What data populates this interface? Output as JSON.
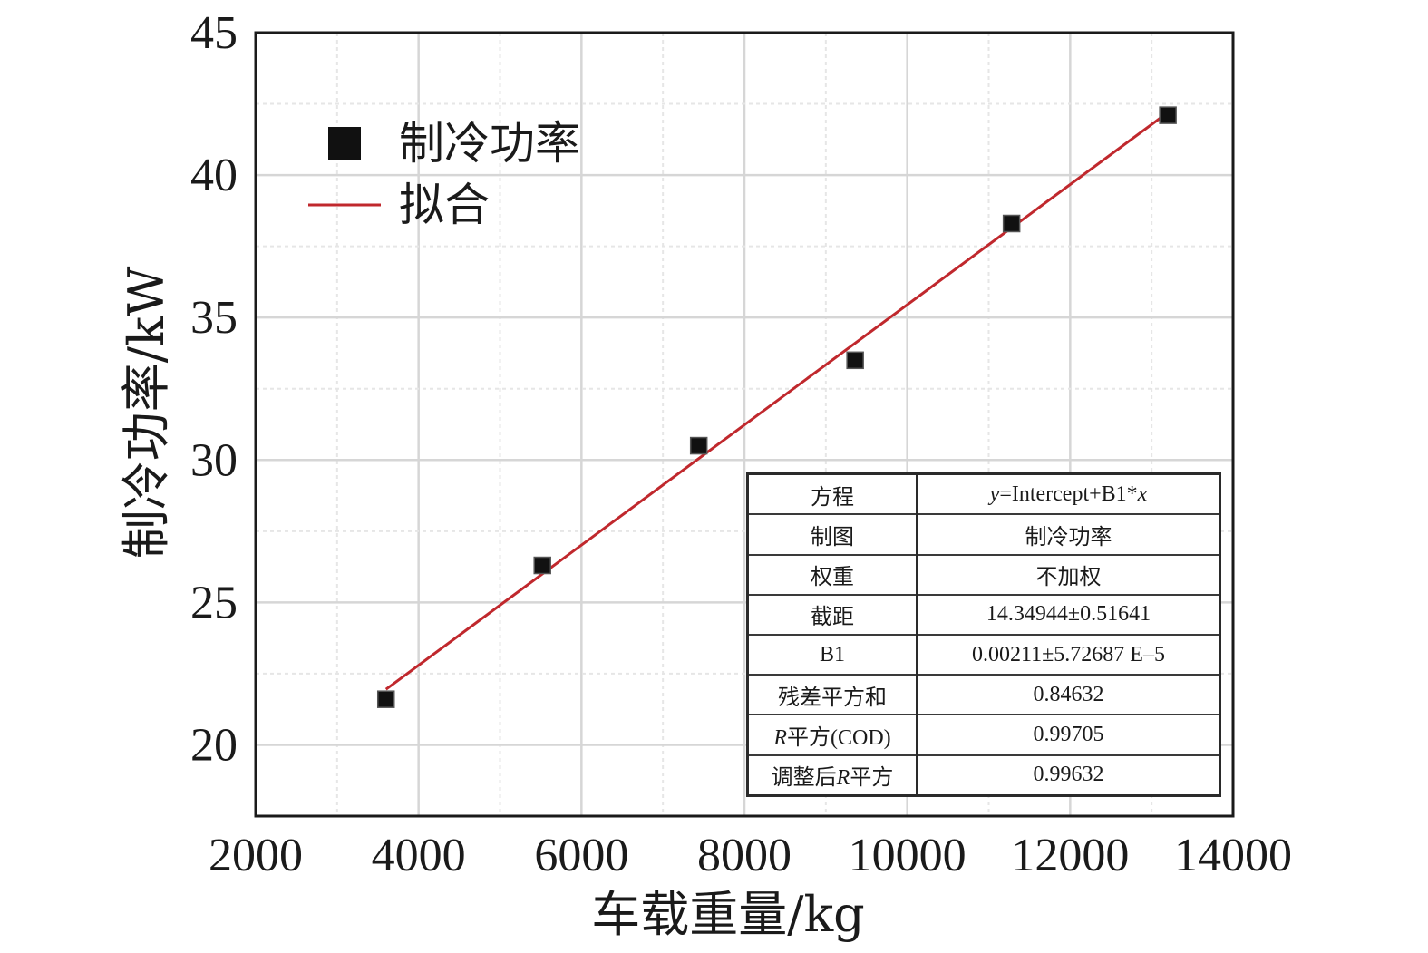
{
  "chart_data": {
    "type": "scatter",
    "xlabel": "车载重量/kg",
    "ylabel": "制冷功率/kW",
    "xlim": [
      2000,
      14000
    ],
    "ylim": [
      17.5,
      45
    ],
    "xticks": [
      "2000",
      "4000",
      "6000",
      "8000",
      "10000",
      "12000",
      "14000"
    ],
    "yticks": [
      "20",
      "25",
      "30",
      "35",
      "40",
      "45"
    ],
    "grid": true,
    "legend_position": "top-left",
    "series": [
      {
        "name": "制冷功率",
        "kind": "scatter",
        "marker": "square",
        "color": "#111111",
        "x": [
          3600,
          5520,
          7440,
          9360,
          11280,
          13200
        ],
        "y": [
          21.6,
          26.3,
          30.5,
          33.5,
          38.3,
          42.1
        ]
      },
      {
        "name": "拟合",
        "kind": "line",
        "color": "#c0282d",
        "x": [
          3600,
          13200
        ],
        "y": [
          21.95,
          42.2
        ]
      }
    ],
    "fit_table": [
      {
        "key": "方程",
        "value": "y=Intercept+B1*x"
      },
      {
        "key": "制图",
        "value": "制冷功率"
      },
      {
        "key": "权重",
        "value": "不加权"
      },
      {
        "key": "截距",
        "value": "14.34944±0.51641"
      },
      {
        "key": "B1",
        "value": "0.00211±5.72687 E–5"
      },
      {
        "key": "残差平方和",
        "value": "0.84632"
      },
      {
        "key": "R平方(COD)",
        "value": "0.99705"
      },
      {
        "key": "调整后R平方",
        "value": "0.99632"
      }
    ]
  }
}
